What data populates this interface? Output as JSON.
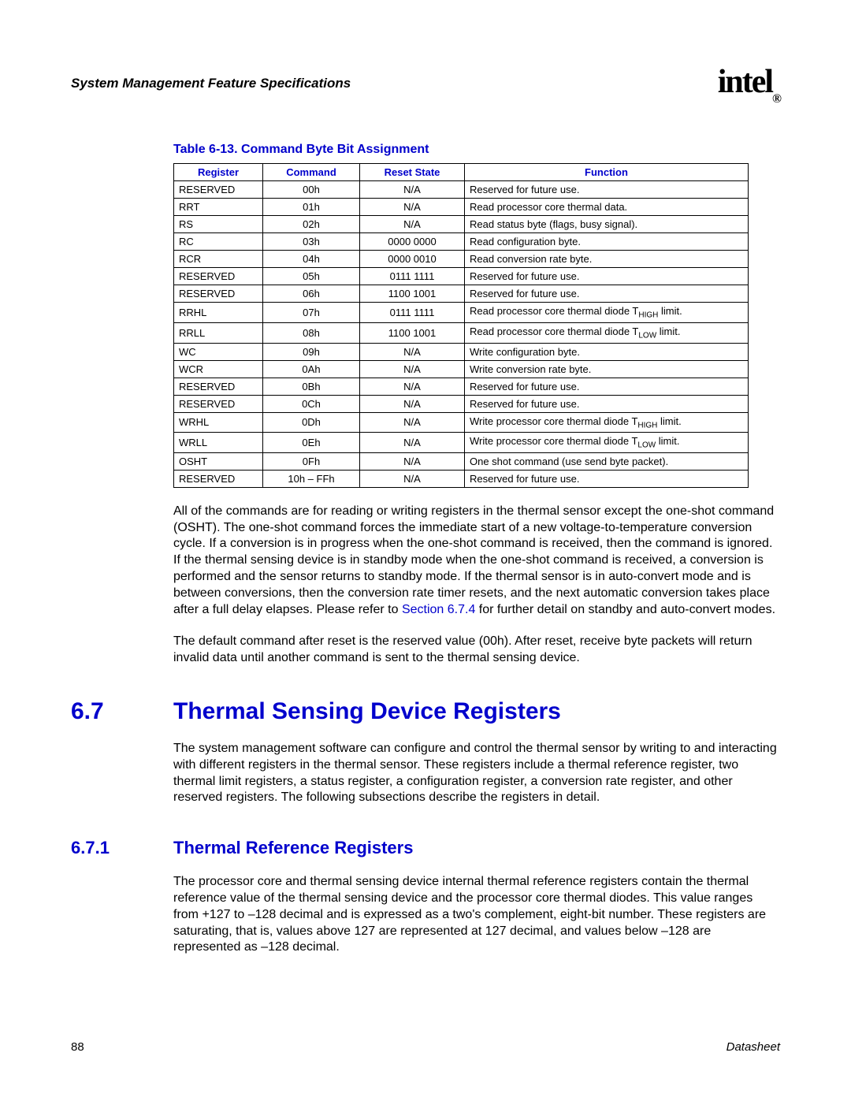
{
  "header": {
    "title": "System Management Feature Specifications",
    "logo_text": "intel",
    "logo_reg": "®"
  },
  "table": {
    "caption": "Table 6-13. Command Byte Bit Assignment",
    "columns": [
      "Register",
      "Command",
      "Reset State",
      "Function"
    ],
    "rows": [
      {
        "r": "RESERVED",
        "c": "00h",
        "s": "N/A",
        "f_pre": "Reserved for future use.",
        "f_sub": "",
        "f_post": ""
      },
      {
        "r": "RRT",
        "c": "01h",
        "s": "N/A",
        "f_pre": "Read processor core thermal data.",
        "f_sub": "",
        "f_post": ""
      },
      {
        "r": "RS",
        "c": "02h",
        "s": "N/A",
        "f_pre": "Read status byte (flags, busy signal).",
        "f_sub": "",
        "f_post": ""
      },
      {
        "r": "RC",
        "c": "03h",
        "s": "0000 0000",
        "f_pre": "Read configuration byte.",
        "f_sub": "",
        "f_post": ""
      },
      {
        "r": "RCR",
        "c": "04h",
        "s": "0000 0010",
        "f_pre": "Read conversion rate byte.",
        "f_sub": "",
        "f_post": ""
      },
      {
        "r": "RESERVED",
        "c": "05h",
        "s": "0111 1111",
        "f_pre": "Reserved for future use.",
        "f_sub": "",
        "f_post": ""
      },
      {
        "r": "RESERVED",
        "c": "06h",
        "s": "1100 1001",
        "f_pre": "Reserved for future use.",
        "f_sub": "",
        "f_post": ""
      },
      {
        "r": "RRHL",
        "c": "07h",
        "s": "0111 1111",
        "f_pre": "Read processor core thermal diode T",
        "f_sub": "HIGH",
        "f_post": " limit."
      },
      {
        "r": "RRLL",
        "c": "08h",
        "s": "1100 1001",
        "f_pre": "Read processor core thermal diode T",
        "f_sub": "LOW",
        "f_post": " limit."
      },
      {
        "r": "WC",
        "c": "09h",
        "s": "N/A",
        "f_pre": "Write configuration byte.",
        "f_sub": "",
        "f_post": ""
      },
      {
        "r": "WCR",
        "c": "0Ah",
        "s": "N/A",
        "f_pre": "Write conversion rate byte.",
        "f_sub": "",
        "f_post": ""
      },
      {
        "r": "RESERVED",
        "c": "0Bh",
        "s": "N/A",
        "f_pre": "Reserved for future use.",
        "f_sub": "",
        "f_post": ""
      },
      {
        "r": "RESERVED",
        "c": "0Ch",
        "s": "N/A",
        "f_pre": "Reserved for future use.",
        "f_sub": "",
        "f_post": ""
      },
      {
        "r": "WRHL",
        "c": "0Dh",
        "s": "N/A",
        "f_pre": "Write processor core thermal diode T",
        "f_sub": "HIGH",
        "f_post": " limit."
      },
      {
        "r": "WRLL",
        "c": "0Eh",
        "s": "N/A",
        "f_pre": "Write processor core thermal diode T",
        "f_sub": "LOW",
        "f_post": " limit."
      },
      {
        "r": "OSHT",
        "c": "0Fh",
        "s": "N/A",
        "f_pre": "One shot command (use send byte packet).",
        "f_sub": "",
        "f_post": ""
      },
      {
        "r": "RESERVED",
        "c": "10h – FFh",
        "s": "N/A",
        "f_pre": "Reserved for future use.",
        "f_sub": "",
        "f_post": ""
      }
    ]
  },
  "para1_a": "All of the commands are for reading or writing registers in the thermal sensor except the one-shot command (OSHT). The one-shot command forces the immediate start of a new voltage-to-temperature conversion cycle. If a conversion is in progress when the one-shot command is received, then the command is ignored. If the thermal sensing device is in standby mode when the one-shot command is received, a conversion is performed and the sensor returns to standby mode. If the thermal sensor is in auto-convert mode and is between conversions, then the conversion rate timer resets, and the next automatic conversion takes place after a full delay elapses. Please refer to ",
  "para1_link": "Section 6.7.4",
  "para1_b": " for further detail on standby and auto-convert modes.",
  "para2": "The default command after reset is the reserved value (00h). After reset, receive byte packets will return invalid data until another command is sent to the thermal sensing device.",
  "sec67_num": "6.7",
  "sec67_title": "Thermal Sensing Device Registers",
  "sec67_body": "The system management software can configure and control the thermal sensor by writing to and interacting with different registers in the thermal sensor. These registers include a thermal reference register, two thermal limit registers, a status register, a configuration register, a conversion rate register, and other reserved registers. The following subsections describe the registers in detail.",
  "sec671_num": "6.7.1",
  "sec671_title": "Thermal Reference Registers",
  "sec671_body": "The processor core and thermal sensing device internal thermal reference registers contain the thermal reference value of the thermal sensing device and the processor core thermal diodes. This value ranges from +127 to –128 decimal and is expressed as a two's complement, eight-bit number. These registers are saturating, that is, values above 127 are represented at 127 decimal, and values below –128 are represented as –128 decimal.",
  "footer": {
    "page": "88",
    "label": "Datasheet"
  }
}
